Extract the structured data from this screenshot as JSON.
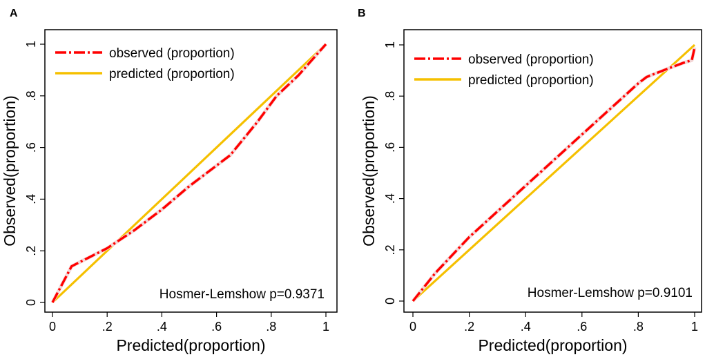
{
  "chart_data": [
    {
      "panel_label": "A",
      "type": "line",
      "xlabel": "Predicted(proportion)",
      "ylabel": "Observed(proportion)",
      "xlim": [
        0,
        1
      ],
      "ylim": [
        0,
        1
      ],
      "xticks": [
        "0",
        ".2",
        ".4",
        ".6",
        ".8",
        "1"
      ],
      "yticks": [
        "0",
        ".2",
        ".4",
        ".6",
        ".8",
        "1"
      ],
      "legend_position": "top-left",
      "annotation": "Hosmer-Lemshow p=0.9371",
      "series": [
        {
          "name": "observed (proportion)",
          "style": "dash-dot",
          "color": "#ff0000",
          "x": [
            0,
            0.07,
            0.2,
            0.3,
            0.4,
            0.5,
            0.65,
            0.75,
            0.82,
            0.9,
            1.0
          ],
          "y": [
            0,
            0.14,
            0.21,
            0.28,
            0.36,
            0.45,
            0.57,
            0.7,
            0.8,
            0.88,
            1.0
          ]
        },
        {
          "name": "predicted (proportion)",
          "style": "solid",
          "color": "#f5c000",
          "x": [
            0,
            1
          ],
          "y": [
            0,
            1
          ]
        }
      ]
    },
    {
      "panel_label": "B",
      "type": "line",
      "xlabel": "Predicted(proportion)",
      "ylabel": "Observed(proportion)",
      "xlim": [
        0,
        1
      ],
      "ylim": [
        0,
        1
      ],
      "xticks": [
        "0",
        ".2",
        ".4",
        ".6",
        ".8",
        "1"
      ],
      "yticks": [
        "0",
        ".2",
        ".4",
        ".6",
        ".8",
        "1"
      ],
      "legend_position": "top-left",
      "annotation": "Hosmer-Lemshow p=0.9101",
      "series": [
        {
          "name": "observed (proportion)",
          "style": "dash-dot",
          "color": "#ff0000",
          "x": [
            0,
            0.08,
            0.2,
            0.4,
            0.6,
            0.8,
            0.83,
            0.9,
            0.96,
            0.99,
            1.0
          ],
          "y": [
            0,
            0.11,
            0.25,
            0.45,
            0.65,
            0.85,
            0.875,
            0.905,
            0.93,
            0.94,
            0.99
          ]
        },
        {
          "name": "predicted (proportion)",
          "style": "solid",
          "color": "#f5c000",
          "x": [
            0,
            1
          ],
          "y": [
            0,
            1
          ]
        }
      ]
    }
  ]
}
